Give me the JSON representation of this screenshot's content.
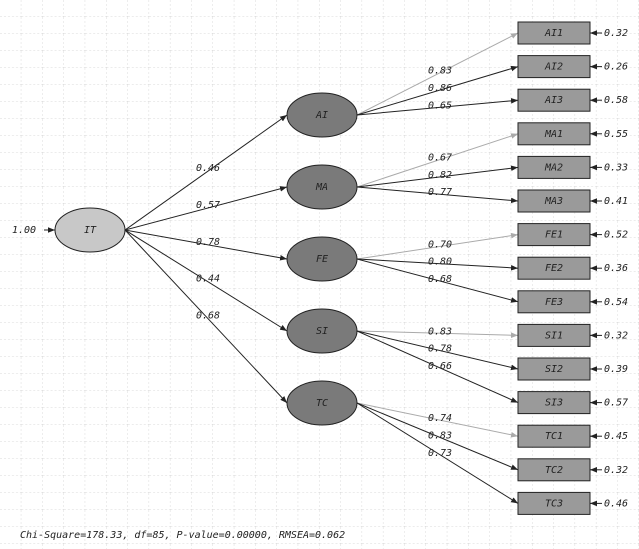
{
  "exogenous": {
    "label": "IT",
    "variance": "1.00"
  },
  "factors": [
    {
      "label": "AI",
      "path": "0.46",
      "indicators": [
        {
          "label": "AI1",
          "loading": "0.83",
          "error": "0.32"
        },
        {
          "label": "AI2",
          "loading": "0.86",
          "error": "0.26"
        },
        {
          "label": "AI3",
          "loading": "0.65",
          "error": "0.58"
        }
      ]
    },
    {
      "label": "MA",
      "path": "0.57",
      "indicators": [
        {
          "label": "MA1",
          "loading": "0.67",
          "error": "0.55"
        },
        {
          "label": "MA2",
          "loading": "0.82",
          "error": "0.33"
        },
        {
          "label": "MA3",
          "loading": "0.77",
          "error": "0.41"
        }
      ]
    },
    {
      "label": "FE",
      "path": "0.78",
      "indicators": [
        {
          "label": "FE1",
          "loading": "0.70",
          "error": "0.52"
        },
        {
          "label": "FE2",
          "loading": "0.80",
          "error": "0.36"
        },
        {
          "label": "FE3",
          "loading": "0.68",
          "error": "0.54"
        }
      ]
    },
    {
      "label": "SI",
      "path": "0.44",
      "indicators": [
        {
          "label": "SI1",
          "loading": "0.83",
          "error": "0.32"
        },
        {
          "label": "SI2",
          "loading": "0.78",
          "error": "0.39"
        },
        {
          "label": "SI3",
          "loading": "0.66",
          "error": "0.57"
        }
      ]
    },
    {
      "label": "TC",
      "path": "0.68",
      "indicators": [
        {
          "label": "TC1",
          "loading": "0.74",
          "error": "0.45"
        },
        {
          "label": "TC2",
          "loading": "0.83",
          "error": "0.32"
        },
        {
          "label": "TC3",
          "loading": "0.73",
          "error": "0.46"
        }
      ]
    }
  ],
  "fit": "Chi-Square=178.33, df=85, P-value=0.00000, RMSEA=0.062"
}
